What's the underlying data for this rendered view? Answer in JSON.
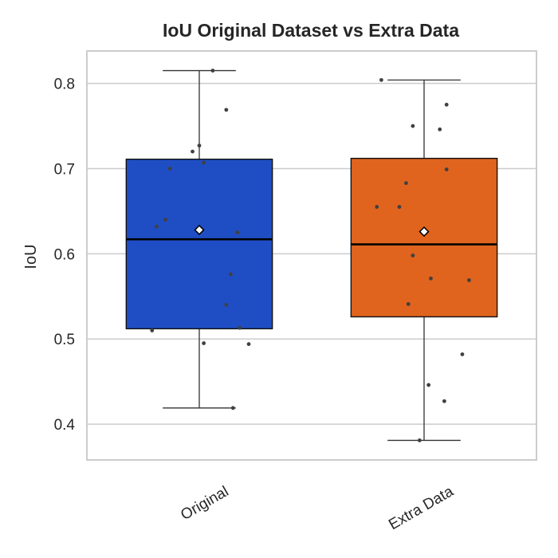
{
  "chart_data": {
    "type": "box",
    "title": "IoU Original Dataset vs Extra Data",
    "xlabel": "",
    "ylabel": "IoU",
    "categories": [
      "Original",
      "Extra Data"
    ],
    "ylim": [
      0.358,
      0.838
    ],
    "yticks": [
      0.4,
      0.5,
      0.6,
      0.7,
      0.8
    ],
    "grid": "horizontal",
    "boxes": [
      {
        "category": "Original",
        "color": "#1f4ec4",
        "whisker_low": 0.419,
        "q1": 0.512,
        "median": 0.617,
        "q3": 0.711,
        "whisker_high": 0.815,
        "mean": 0.628,
        "points": [
          {
            "jitter": 0.06,
            "y": 0.815
          },
          {
            "jitter": 0.12,
            "y": 0.769
          },
          {
            "jitter": 0.0,
            "y": 0.727
          },
          {
            "jitter": -0.03,
            "y": 0.72
          },
          {
            "jitter": 0.02,
            "y": 0.707
          },
          {
            "jitter": -0.13,
            "y": 0.7
          },
          {
            "jitter": -0.15,
            "y": 0.64
          },
          {
            "jitter": -0.19,
            "y": 0.632
          },
          {
            "jitter": 0.17,
            "y": 0.625
          },
          {
            "jitter": 0.14,
            "y": 0.576
          },
          {
            "jitter": 0.12,
            "y": 0.54
          },
          {
            "jitter": 0.18,
            "y": 0.513
          },
          {
            "jitter": -0.21,
            "y": 0.51
          },
          {
            "jitter": 0.02,
            "y": 0.495
          },
          {
            "jitter": 0.22,
            "y": 0.494
          },
          {
            "jitter": 0.15,
            "y": 0.419
          }
        ]
      },
      {
        "category": "Extra Data",
        "color": "#e0641e",
        "whisker_low": 0.381,
        "q1": 0.526,
        "median": 0.611,
        "q3": 0.712,
        "whisker_high": 0.804,
        "mean": 0.626,
        "points": [
          {
            "jitter": -0.19,
            "y": 0.804
          },
          {
            "jitter": 0.1,
            "y": 0.775
          },
          {
            "jitter": -0.05,
            "y": 0.75
          },
          {
            "jitter": 0.07,
            "y": 0.746
          },
          {
            "jitter": 0.1,
            "y": 0.699
          },
          {
            "jitter": -0.08,
            "y": 0.683
          },
          {
            "jitter": -0.21,
            "y": 0.655
          },
          {
            "jitter": -0.11,
            "y": 0.655
          },
          {
            "jitter": -0.05,
            "y": 0.598
          },
          {
            "jitter": 0.03,
            "y": 0.571
          },
          {
            "jitter": 0.2,
            "y": 0.569
          },
          {
            "jitter": -0.07,
            "y": 0.541
          },
          {
            "jitter": 0.17,
            "y": 0.482
          },
          {
            "jitter": 0.02,
            "y": 0.446
          },
          {
            "jitter": 0.09,
            "y": 0.427
          },
          {
            "jitter": -0.02,
            "y": 0.381
          }
        ]
      }
    ],
    "styles": {
      "grid_color": "#cccccc",
      "frame_color": "#cccccc",
      "text_color": "#262626",
      "line_color": "#333333",
      "point_color": "#404040",
      "mean_marker_fill": "#ffffff"
    }
  }
}
